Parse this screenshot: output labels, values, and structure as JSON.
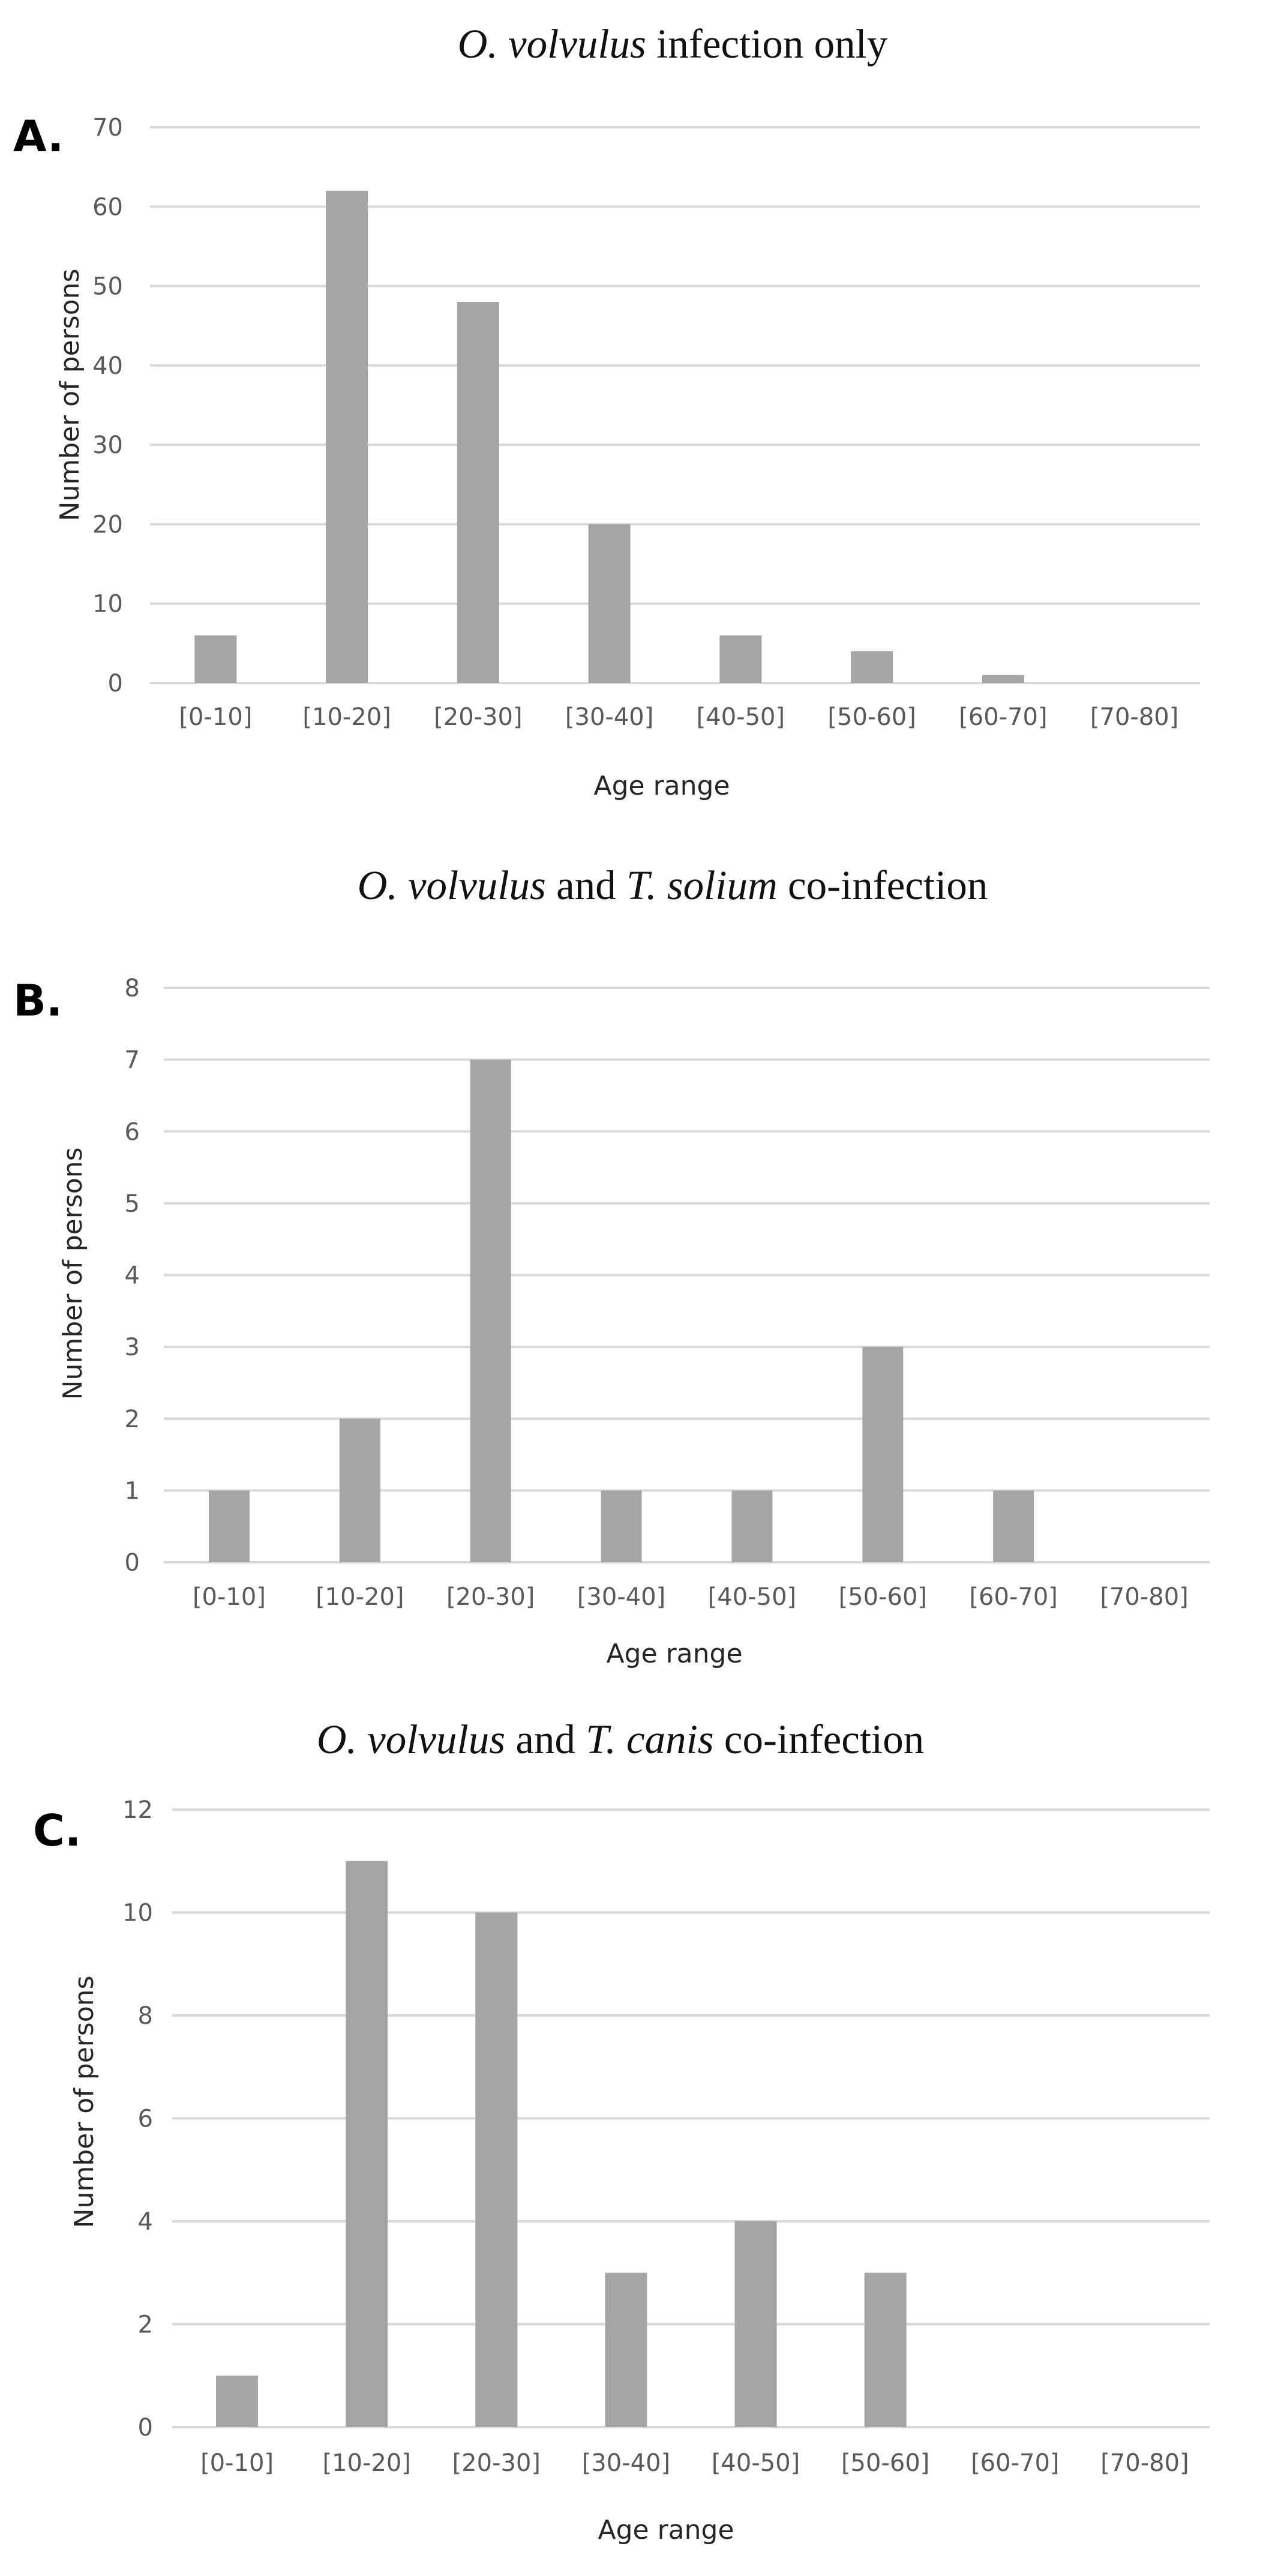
{
  "chart_data": [
    {
      "type": "bar",
      "panel_label": "A.",
      "title": {
        "italic": "O. volvulus",
        "rest": " infection only"
      },
      "categories": [
        "[0-10]",
        "[10-20]",
        "[20-30]",
        "[30-40]",
        "[40-50]",
        "[50-60]",
        "[60-70]",
        "[70-80]"
      ],
      "values": [
        6,
        62,
        48,
        20,
        6,
        4,
        1,
        0
      ],
      "yticks": [
        0,
        10,
        20,
        30,
        40,
        50,
        60,
        70
      ],
      "ylim": [
        0,
        70
      ],
      "xlabel": "Age range",
      "ylabel": "Number of persons",
      "grid": true,
      "bar_color": "#a5a5a5"
    },
    {
      "type": "bar",
      "panel_label": "B.",
      "title": {
        "italic1": "O. volvulus",
        "mid": " and ",
        "italic2": "T. solium",
        "rest": " co-infection"
      },
      "categories": [
        "[0-10]",
        "[10-20]",
        "[20-30]",
        "[30-40]",
        "[40-50]",
        "[50-60]",
        "[60-70]",
        "[70-80]"
      ],
      "values": [
        1,
        2,
        7,
        1,
        1,
        3,
        1,
        0
      ],
      "yticks": [
        0,
        1,
        2,
        3,
        4,
        5,
        6,
        7,
        8
      ],
      "ylim": [
        0,
        8
      ],
      "xlabel": "Age range",
      "ylabel": "Number of persons",
      "grid": true,
      "bar_color": "#a5a5a5"
    },
    {
      "type": "bar",
      "panel_label": "C.",
      "title": {
        "italic1": "O. volvulus",
        "mid": " and ",
        "italic2": "T. canis",
        "rest": " co-infection"
      },
      "categories": [
        "[0-10]",
        "[10-20]",
        "[20-30]",
        "[30-40]",
        "[40-50]",
        "[50-60]",
        "[60-70]",
        "[70-80]"
      ],
      "values": [
        1,
        11,
        10,
        3,
        4,
        3,
        0,
        0
      ],
      "yticks": [
        0,
        2,
        4,
        6,
        8,
        10,
        12
      ],
      "ylim": [
        0,
        12
      ],
      "xlabel": "Age range",
      "ylabel": "Number of persons",
      "grid": true,
      "bar_color": "#a5a5a5"
    }
  ]
}
